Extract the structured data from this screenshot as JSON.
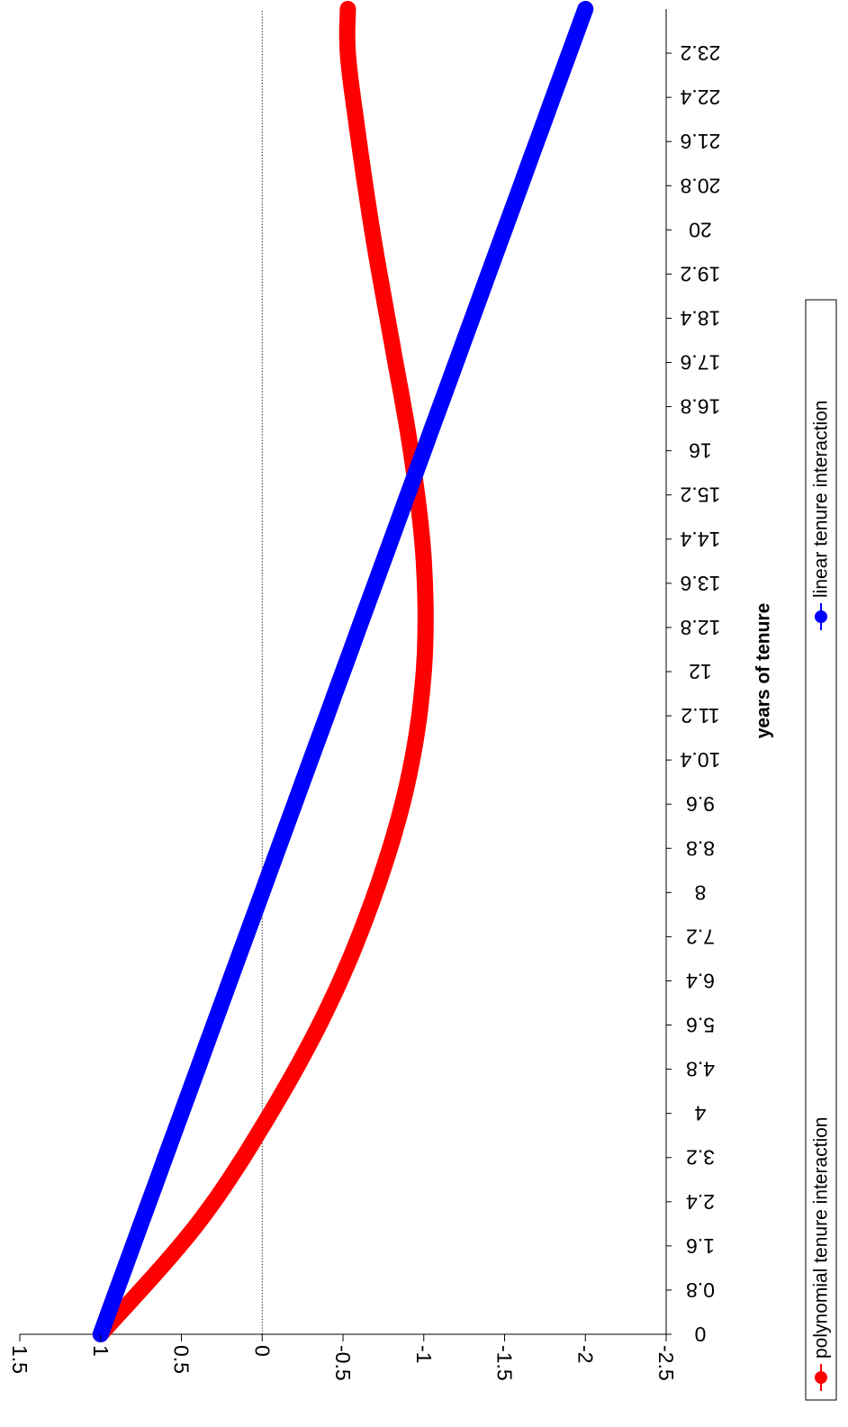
{
  "chart_data": {
    "type": "line",
    "orientation": "rotated-90-clockwise",
    "title": "",
    "xlabel": "years of tenure",
    "ylabel": "",
    "x_tick_labels": [
      "0",
      "0.8",
      "1.6",
      "2.4",
      "3.2",
      "4",
      "4.8",
      "5.6",
      "6.4",
      "7.2",
      "8",
      "8.8",
      "9.6",
      "10.4",
      "11.2",
      "12",
      "12.8",
      "13.6",
      "14.4",
      "15.2",
      "16",
      "16.8",
      "17.6",
      "18.4",
      "19.2",
      "20",
      "20.8",
      "21.6",
      "22.4",
      "23.2"
    ],
    "y_tick_labels": [
      "1.5",
      "1",
      "0.5",
      "0",
      "-0.5",
      "-1",
      "-1.5",
      "-2",
      "-2.5"
    ],
    "xlim": [
      0,
      24
    ],
    "ylim": [
      -2.5,
      1.5
    ],
    "grid": false,
    "reference_line": {
      "y": 0,
      "style": "dotted"
    },
    "legend_position": "bottom",
    "series": [
      {
        "name": "polynomial tenure interaction",
        "color": "#ff0000",
        "x": [
          0,
          2,
          4,
          6,
          8,
          10,
          12,
          14,
          16,
          18,
          20,
          22,
          23.2,
          24
        ],
        "y": [
          1.0,
          0.4,
          -0.05,
          -0.42,
          -0.7,
          -0.9,
          -1.0,
          -1.0,
          -0.92,
          -0.8,
          -0.68,
          -0.58,
          -0.53,
          -0.53
        ]
      },
      {
        "name": "linear tenure interaction",
        "color": "#0000ff",
        "x": [
          0,
          24
        ],
        "y": [
          1.0,
          -2.0
        ]
      }
    ]
  }
}
